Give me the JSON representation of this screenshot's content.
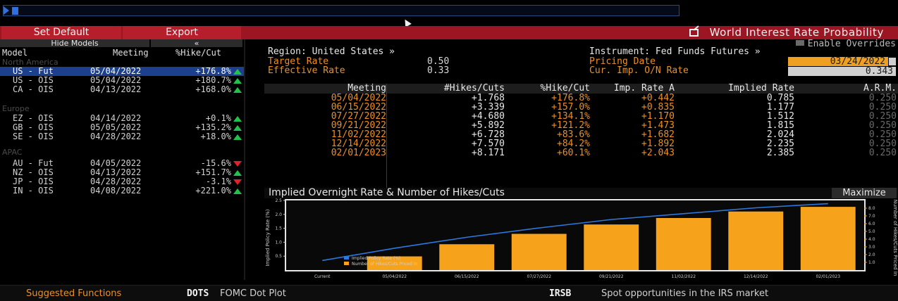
{
  "toolbar": {
    "set_default": "Set Default",
    "export": "Export",
    "title": "World Interest Rate Probability"
  },
  "left_panel": {
    "hide_models": "Hide Models",
    "collapse": "«",
    "headers": {
      "model": "Model",
      "meeting": "Meeting",
      "pct": "%Hike/Cut"
    },
    "groups": [
      {
        "name": "North America",
        "rows": [
          {
            "model": "US - Fut",
            "meeting": "05/04/2022",
            "pct": "+176.8%",
            "dir": "up",
            "selected": true
          },
          {
            "model": "US - OIS",
            "meeting": "05/04/2022",
            "pct": "+180.7%",
            "dir": "up"
          },
          {
            "model": "CA - OIS",
            "meeting": "04/13/2022",
            "pct": "+168.0%",
            "dir": "up"
          }
        ]
      },
      {
        "name": "Europe",
        "rows": [
          {
            "model": "EZ - OIS",
            "meeting": "04/14/2022",
            "pct": "+0.1%",
            "dir": "up"
          },
          {
            "model": "GB - OIS",
            "meeting": "05/05/2022",
            "pct": "+135.2%",
            "dir": "up"
          },
          {
            "model": "SE - OIS",
            "meeting": "04/28/2022",
            "pct": "+18.0%",
            "dir": "up"
          }
        ]
      },
      {
        "name": "APAC",
        "rows": [
          {
            "model": "AU - Fut",
            "meeting": "04/05/2022",
            "pct": "-15.6%",
            "dir": "down"
          },
          {
            "model": "NZ - OIS",
            "meeting": "04/13/2022",
            "pct": "+151.7%",
            "dir": "up"
          },
          {
            "model": "JP - OIS",
            "meeting": "04/28/2022",
            "pct": "-3.1%",
            "dir": "down"
          },
          {
            "model": "IN - OIS",
            "meeting": "04/08/2022",
            "pct": "+221.0%",
            "dir": "up"
          }
        ]
      }
    ]
  },
  "info": {
    "region": "Region: United States »",
    "target_rate_label": "Target Rate",
    "target_rate": "0.50",
    "effective_rate_label": "Effective Rate",
    "effective_rate": "0.33",
    "instrument": "Instrument: Fed Funds Futures »",
    "pricing_date_label": "Pricing Date",
    "pricing_date": "03/24/2022",
    "cur_imp_label": "Cur. Imp. O/N Rate",
    "cur_imp": "0.343",
    "enable_overrides": "Enable Overrides"
  },
  "table": {
    "headers": [
      "Meeting",
      "#Hikes/Cuts",
      "%Hike/Cut",
      "Imp. Rate A",
      "Implied Rate",
      "A.R.M."
    ],
    "rows": [
      [
        "05/04/2022",
        "+1.768",
        "+176.8%",
        "+0.442",
        "0.785",
        "0.250"
      ],
      [
        "06/15/2022",
        "+3.339",
        "+157.0%",
        "+0.835",
        "1.177",
        "0.250"
      ],
      [
        "07/27/2022",
        "+4.680",
        "+134.1%",
        "+1.170",
        "1.512",
        "0.250"
      ],
      [
        "09/21/2022",
        "+5.892",
        "+121.2%",
        "+1.473",
        "1.815",
        "0.250"
      ],
      [
        "11/02/2022",
        "+6.728",
        "+83.6%",
        "+1.682",
        "2.024",
        "0.250"
      ],
      [
        "12/14/2022",
        "+7.570",
        "+84.2%",
        "+1.892",
        "2.235",
        "0.250"
      ],
      [
        "02/01/2023",
        "+8.171",
        "+60.1%",
        "+2.043",
        "2.385",
        "0.250"
      ]
    ]
  },
  "chart_header": {
    "title": "Implied Overnight Rate & Number of Hikes/Cuts",
    "maximize": "Maximize"
  },
  "chart_data": {
    "type": "bar",
    "categories": [
      "Current",
      "05/04/2022",
      "06/15/2022",
      "07/27/2022",
      "09/21/2022",
      "11/02/2022",
      "12/14/2022",
      "02/01/2023"
    ],
    "series": [
      {
        "name": "Implied Policy Rate (%)",
        "type": "line",
        "axis": "left",
        "values": [
          0.343,
          0.785,
          1.177,
          1.512,
          1.815,
          2.024,
          2.235,
          2.385
        ],
        "color": "#2a78e0"
      },
      {
        "name": "Number of Hikes/Cuts Priced In",
        "type": "bar",
        "axis": "right",
        "values": [
          0,
          1.768,
          3.339,
          4.68,
          5.892,
          6.728,
          7.57,
          8.171
        ],
        "color": "#f7a21b"
      }
    ],
    "ylabel": "Implied Policy Rate (%)",
    "y2label": "Number of Hikes/Cuts Priced In",
    "ylim": [
      0,
      2.5
    ],
    "y2lim": [
      0,
      9
    ],
    "yticks": [
      "0.5",
      "1.0",
      "1.5",
      "2.0",
      "2.5"
    ],
    "y2ticks": [
      "1.0",
      "2.0",
      "3.0",
      "4.0",
      "5.0",
      "6.0",
      "7.0",
      "8.0"
    ],
    "legend": "bottom-left inside",
    "grid": false
  },
  "bottom": {
    "suggested": "Suggested Functions",
    "f1_cmd": "DOTS",
    "f1_desc": "FOMC Dot Plot",
    "f2_cmd": "IRSB",
    "f2_desc": "Spot opportunities in the IRS market"
  },
  "colors": {
    "orange": "#f0901e",
    "red_bar": "#9b1622",
    "selected_row": "#1c3f8e",
    "bar": "#f7a21b",
    "line": "#2a78e0"
  }
}
